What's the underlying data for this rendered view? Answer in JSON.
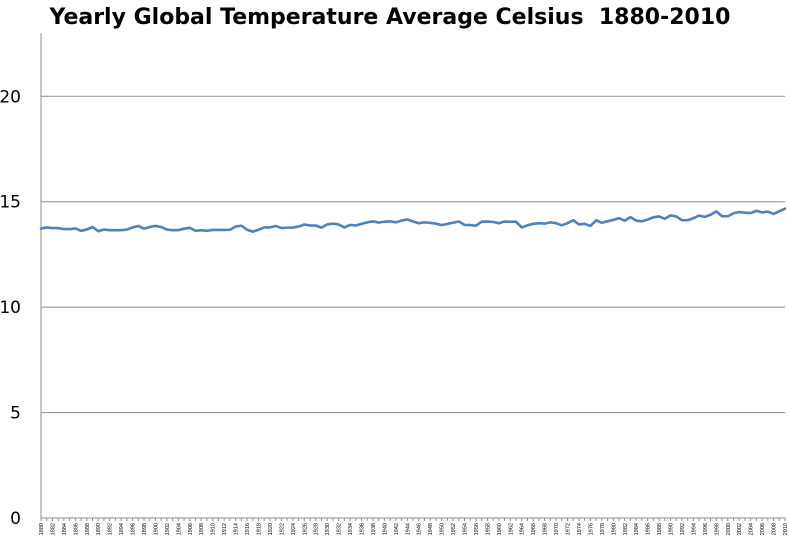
{
  "chart_data": {
    "type": "line",
    "title": "Yearly Global Temperature Average Celsius  1880-2010",
    "xlabel": "",
    "ylabel": "",
    "ylim": [
      0,
      23
    ],
    "yticks": [
      0,
      5,
      10,
      15,
      20
    ],
    "grid": true,
    "legend": "none",
    "line_color": "#4f81bd",
    "x": [
      1880,
      1881,
      1882,
      1883,
      1884,
      1885,
      1886,
      1887,
      1888,
      1889,
      1890,
      1891,
      1892,
      1893,
      1894,
      1895,
      1896,
      1897,
      1898,
      1899,
      1900,
      1901,
      1902,
      1903,
      1904,
      1905,
      1906,
      1907,
      1908,
      1909,
      1910,
      1911,
      1912,
      1913,
      1914,
      1915,
      1916,
      1917,
      1918,
      1919,
      1920,
      1921,
      1922,
      1923,
      1924,
      1925,
      1926,
      1927,
      1928,
      1929,
      1930,
      1931,
      1932,
      1933,
      1934,
      1935,
      1936,
      1937,
      1938,
      1939,
      1940,
      1941,
      1942,
      1943,
      1944,
      1945,
      1946,
      1947,
      1948,
      1949,
      1950,
      1951,
      1952,
      1953,
      1954,
      1955,
      1956,
      1957,
      1958,
      1959,
      1960,
      1961,
      1962,
      1963,
      1964,
      1965,
      1966,
      1967,
      1968,
      1969,
      1970,
      1971,
      1972,
      1973,
      1974,
      1975,
      1976,
      1977,
      1978,
      1979,
      1980,
      1981,
      1982,
      1983,
      1984,
      1985,
      1986,
      1987,
      1988,
      1989,
      1990,
      1991,
      1992,
      1993,
      1994,
      1995,
      1996,
      1997,
      1998,
      1999,
      2000,
      2001,
      2002,
      2003,
      2004,
      2005,
      2006,
      2007,
      2008,
      2009,
      2010
    ],
    "xtick_labels": [
      "1880",
      "1882",
      "1884",
      "1886",
      "1888",
      "1890",
      "1892",
      "1894",
      "1896",
      "1898",
      "1900",
      "1902",
      "1904",
      "1906",
      "1908",
      "1910",
      "1912",
      "1914",
      "1916",
      "1918",
      "1920",
      "1922",
      "1924",
      "1926",
      "1928",
      "1930",
      "1932",
      "1934",
      "1936",
      "1938",
      "1940",
      "1942",
      "1944",
      "1946",
      "1948",
      "1950",
      "1952",
      "1954",
      "1956",
      "1958",
      "1960",
      "1962",
      "1964",
      "1966",
      "1968",
      "1970",
      "1972",
      "1974",
      "1976",
      "1978",
      "1980",
      "1982",
      "1984",
      "1986",
      "1988",
      "1990",
      "1992",
      "1994",
      "1996",
      "1998",
      "2000",
      "2002",
      "2004",
      "2006",
      "2008",
      "2010"
    ],
    "series": [
      {
        "values": [
          13.73,
          13.78,
          13.75,
          13.75,
          13.7,
          13.7,
          13.73,
          13.62,
          13.68,
          13.8,
          13.6,
          13.68,
          13.65,
          13.65,
          13.65,
          13.68,
          13.78,
          13.85,
          13.72,
          13.8,
          13.85,
          13.8,
          13.68,
          13.65,
          13.65,
          13.72,
          13.76,
          13.62,
          13.65,
          13.62,
          13.66,
          13.66,
          13.66,
          13.67,
          13.82,
          13.86,
          13.67,
          13.58,
          13.67,
          13.78,
          13.78,
          13.85,
          13.75,
          13.77,
          13.77,
          13.82,
          13.92,
          13.87,
          13.87,
          13.77,
          13.92,
          13.96,
          13.92,
          13.78,
          13.9,
          13.87,
          13.95,
          14.02,
          14.07,
          14.01,
          14.05,
          14.07,
          14.02,
          14.1,
          14.16,
          14.06,
          13.98,
          14.02,
          14.0,
          13.96,
          13.89,
          13.95,
          14.0,
          14.06,
          13.9,
          13.89,
          13.86,
          14.05,
          14.06,
          14.04,
          13.98,
          14.06,
          14.05,
          14.05,
          13.78,
          13.88,
          13.95,
          13.98,
          13.96,
          14.02,
          13.98,
          13.88,
          13.98,
          14.12,
          13.92,
          13.95,
          13.85,
          14.12,
          14.0,
          14.07,
          14.14,
          14.22,
          14.1,
          14.27,
          14.1,
          14.07,
          14.15,
          14.26,
          14.3,
          14.19,
          14.35,
          14.3,
          14.12,
          14.12,
          14.22,
          14.34,
          14.28,
          14.38,
          14.54,
          14.31,
          14.31,
          14.45,
          14.51,
          14.48,
          14.46,
          14.57,
          14.49,
          14.53,
          14.42,
          14.55,
          14.67
        ]
      }
    ]
  }
}
